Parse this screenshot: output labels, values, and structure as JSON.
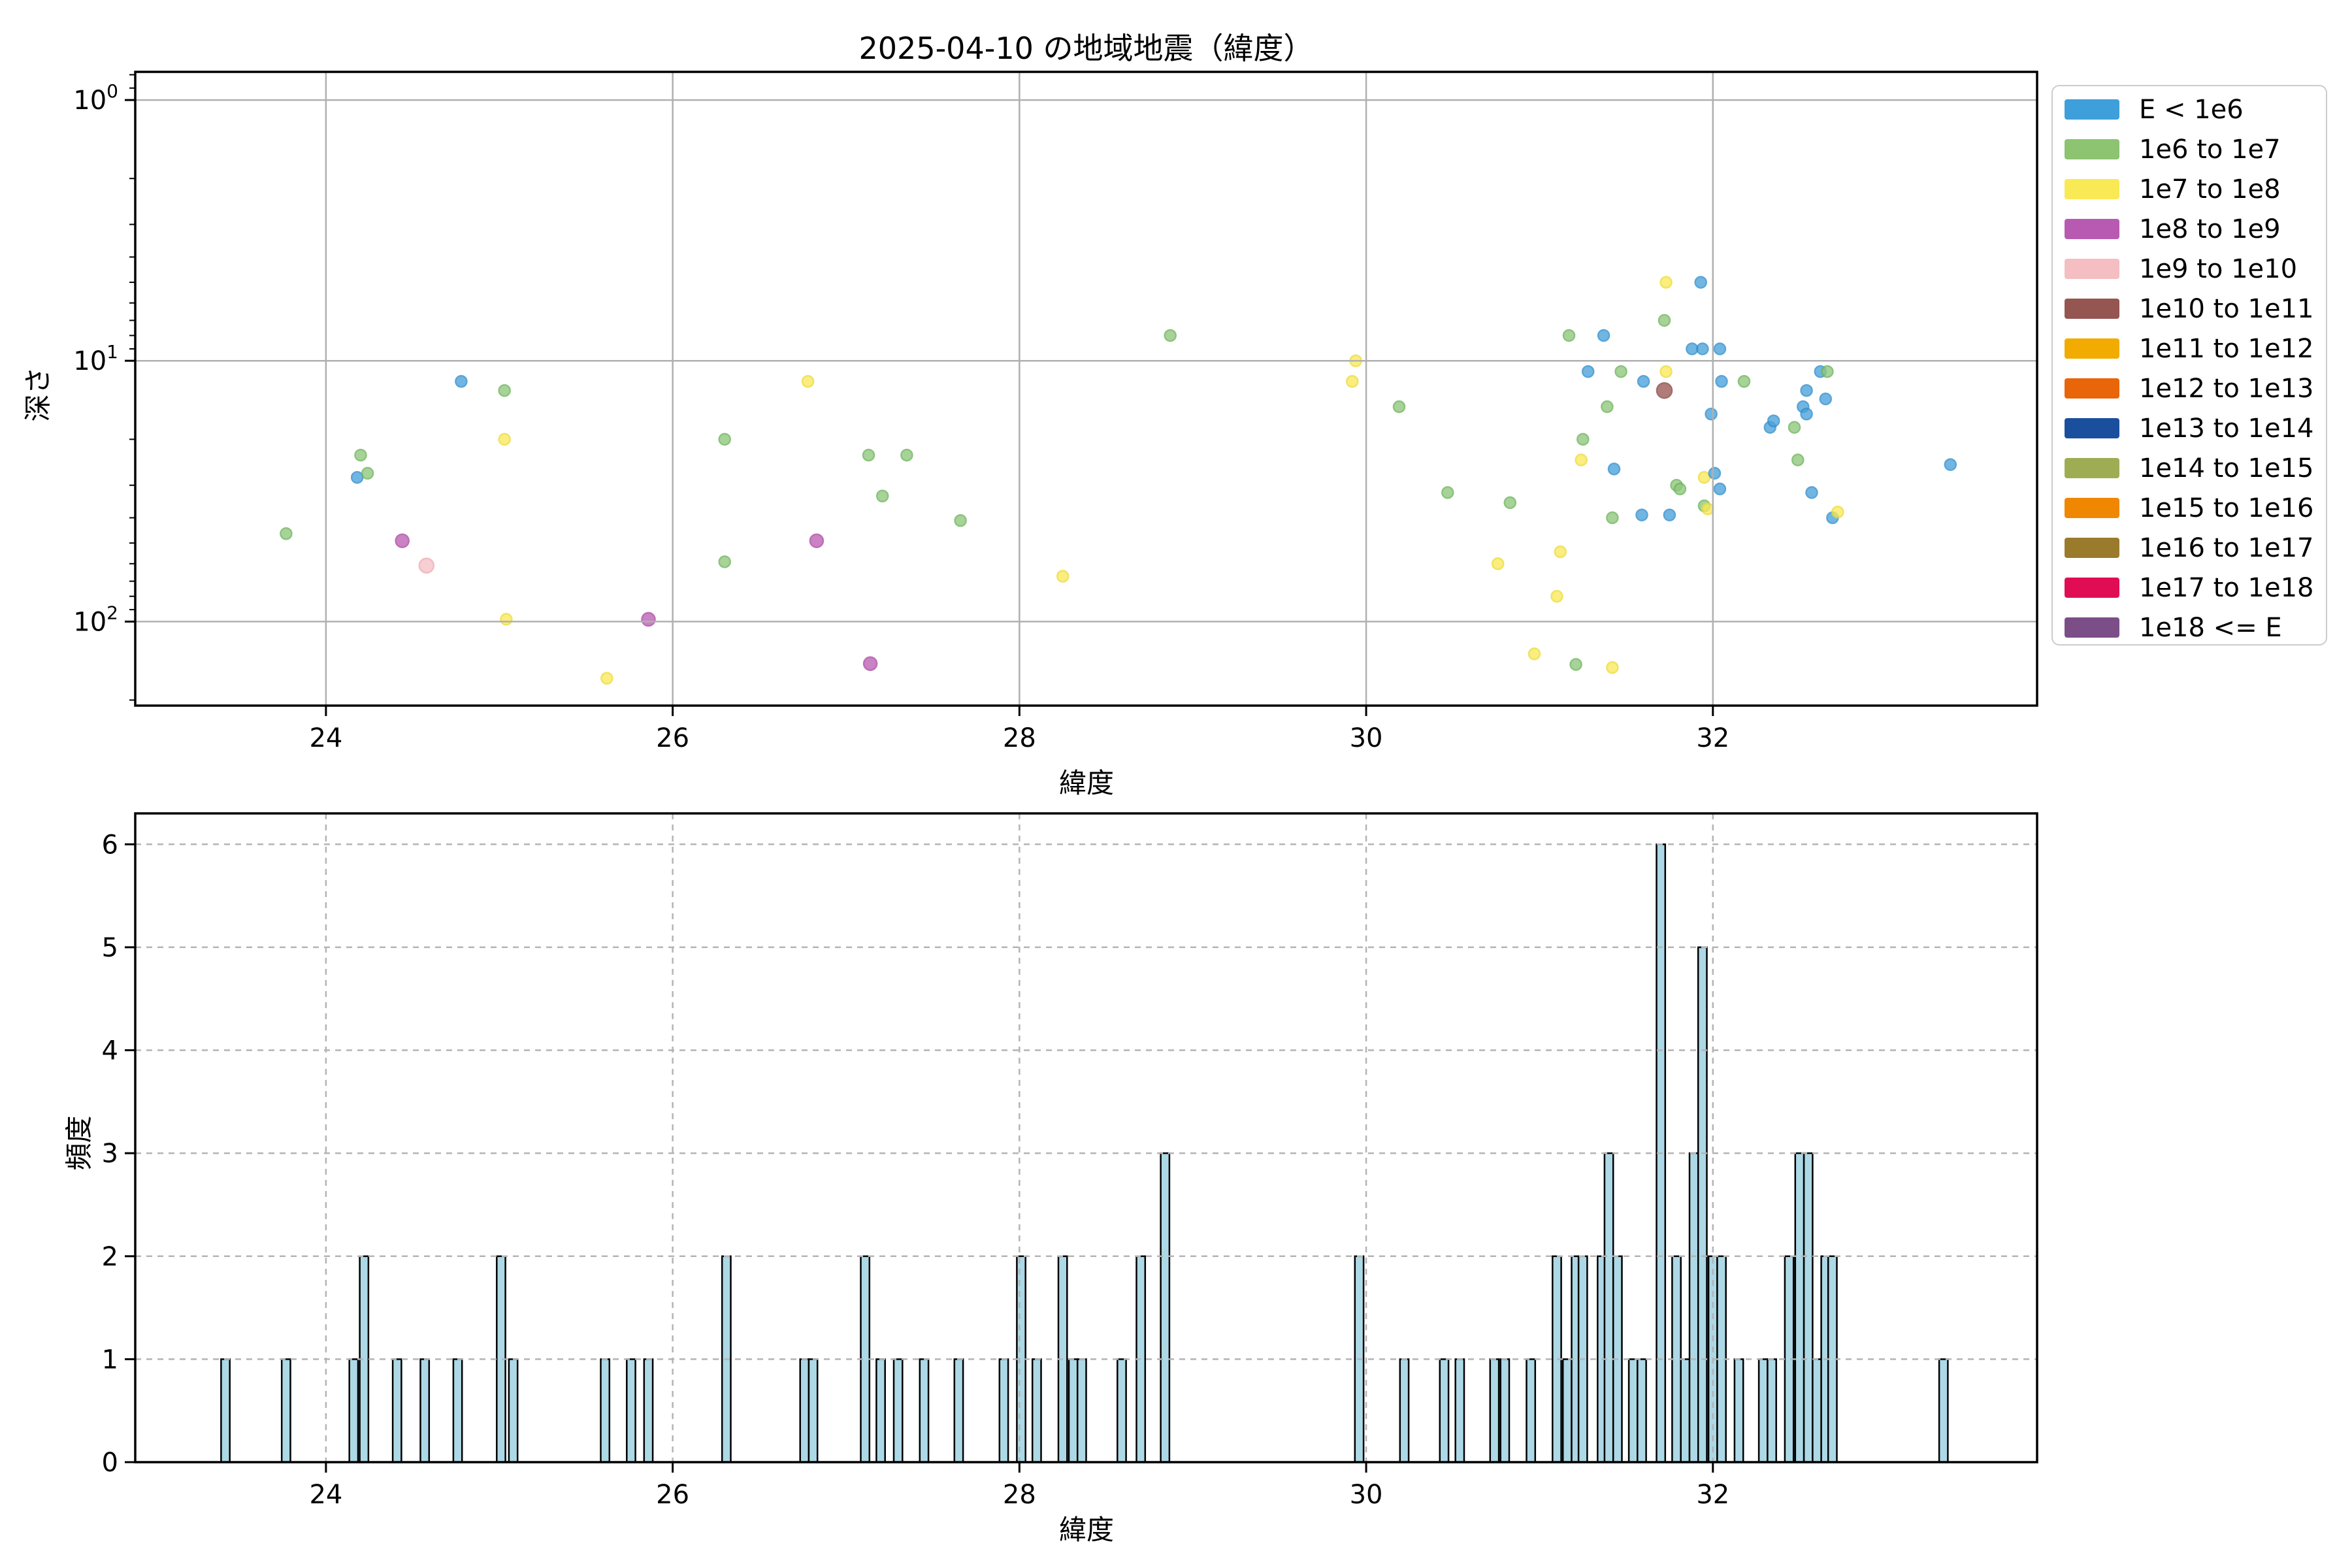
{
  "figure": {
    "title": "2025-04-10 の地域地震（緯度）"
  },
  "scatter_plot": {
    "xlabel": "緯度",
    "ylabel": "深さ",
    "x_tick_labels": [
      "24",
      "26",
      "28",
      "30",
      "32"
    ],
    "y_tick_mantissa": "10",
    "y_tick_exponents": [
      "0",
      "1",
      "2"
    ]
  },
  "histogram": {
    "xlabel": "緯度",
    "ylabel": "頻度",
    "x_tick_labels": [
      "24",
      "26",
      "28",
      "30",
      "32"
    ],
    "y_tick_labels": [
      "0",
      "1",
      "2",
      "3",
      "4",
      "5",
      "6"
    ]
  },
  "legend": {
    "items": [
      {
        "label": "E < 1e6",
        "color": "#3E9FDA"
      },
      {
        "label": "1e6 to 1e7",
        "color": "#8CC471"
      },
      {
        "label": "1e7 to 1e8",
        "color": "#F9E955"
      },
      {
        "label": "1e8 to 1e9",
        "color": "#B85AB2"
      },
      {
        "label": "1e9 to 1e10",
        "color": "#F4BEC2"
      },
      {
        "label": "1e10 to 1e11",
        "color": "#955551"
      },
      {
        "label": "1e11 to 1e12",
        "color": "#F2AB00"
      },
      {
        "label": "1e12 to 1e13",
        "color": "#E8650A"
      },
      {
        "label": "1e13 to 1e14",
        "color": "#1A4F9E"
      },
      {
        "label": "1e14 to 1e15",
        "color": "#9EAD53"
      },
      {
        "label": "1e15 to 1e16",
        "color": "#F08700"
      },
      {
        "label": "1e16 to 1e17",
        "color": "#9A7B2C"
      },
      {
        "label": "1e17 to 1e18",
        "color": "#E00D55"
      },
      {
        "label": "1e18 <= E",
        "color": "#7C4E88"
      }
    ]
  },
  "chart_data": [
    {
      "type": "scatter",
      "title": "2025-04-10 の地域地震（緯度）",
      "xlabel": "緯度",
      "ylabel": "深さ",
      "x_ticks": [
        24,
        26,
        28,
        30,
        32
      ],
      "y_ticks": [
        1,
        10,
        100
      ],
      "y_scale": "log-inverted-shallow-at-top",
      "xlim": [
        22.9,
        33.87
      ],
      "ylim": [
        0.78,
        210
      ],
      "grid": "solid",
      "legend_position": "outside-right",
      "bins": [
        {
          "label": "E < 1e6",
          "fill": "#4AA2DB",
          "edge": "#2E8CCC",
          "r": 8.5
        },
        {
          "label": "1e6 to 1e7",
          "fill": "#8FC77D",
          "edge": "#6DB35A",
          "r": 8.5
        },
        {
          "label": "1e7 to 1e8",
          "fill": "#FAE95A",
          "edge": "#EDDC35",
          "r": 8.5
        },
        {
          "label": "1e8 to 1e9",
          "fill": "#BC5FB5",
          "edge": "#A948A2",
          "r": 10
        },
        {
          "label": "1e9 to 1e10",
          "fill": "#F6C1C5",
          "edge": "#EFA8B0",
          "r": 11
        },
        {
          "label": "1e10 to 1e11",
          "fill": "#9B5854",
          "edge": "#8A4440",
          "r": 11.5
        }
      ],
      "points": [
        [
          23.77,
          46,
          1
        ],
        [
          24.18,
          28,
          0
        ],
        [
          24.2,
          23,
          1
        ],
        [
          24.24,
          27,
          1
        ],
        [
          24.44,
          49,
          3
        ],
        [
          24.58,
          61,
          4
        ],
        [
          24.78,
          12,
          0
        ],
        [
          25.03,
          13,
          1
        ],
        [
          25.03,
          20,
          2
        ],
        [
          25.04,
          98,
          2
        ],
        [
          25.62,
          165,
          2
        ],
        [
          25.86,
          98,
          3
        ],
        [
          26.3,
          20,
          1
        ],
        [
          26.3,
          59,
          1
        ],
        [
          26.78,
          12,
          2
        ],
        [
          26.83,
          49,
          3
        ],
        [
          27.13,
          23,
          1
        ],
        [
          27.14,
          145,
          3
        ],
        [
          27.21,
          33,
          1
        ],
        [
          27.35,
          23,
          1
        ],
        [
          27.66,
          41,
          1
        ],
        [
          28.25,
          67,
          2
        ],
        [
          28.87,
          8,
          1
        ],
        [
          29.92,
          12,
          2
        ],
        [
          29.94,
          10,
          2
        ],
        [
          30.19,
          15,
          1
        ],
        [
          30.47,
          32,
          1
        ],
        [
          30.76,
          60,
          2
        ],
        [
          30.83,
          35,
          1
        ],
        [
          30.97,
          133,
          2
        ],
        [
          31.1,
          80,
          2
        ],
        [
          31.12,
          54,
          2
        ],
        [
          31.17,
          8,
          1
        ],
        [
          31.21,
          146,
          1
        ],
        [
          31.24,
          24,
          2
        ],
        [
          31.25,
          20,
          1
        ],
        [
          31.28,
          11,
          0
        ],
        [
          31.37,
          8,
          0
        ],
        [
          31.39,
          15,
          1
        ],
        [
          31.42,
          150,
          2
        ],
        [
          31.42,
          40,
          1
        ],
        [
          31.43,
          26,
          0
        ],
        [
          31.47,
          11,
          1
        ],
        [
          31.59,
          39,
          0
        ],
        [
          31.6,
          12,
          0
        ],
        [
          31.72,
          7,
          1
        ],
        [
          31.72,
          13,
          5
        ],
        [
          31.73,
          5,
          2
        ],
        [
          31.73,
          11,
          2
        ],
        [
          31.75,
          39,
          0
        ],
        [
          31.79,
          30,
          1
        ],
        [
          31.81,
          31,
          1
        ],
        [
          31.88,
          9,
          0
        ],
        [
          31.93,
          5,
          0
        ],
        [
          31.94,
          9,
          0
        ],
        [
          31.95,
          28,
          2
        ],
        [
          31.95,
          36,
          1
        ],
        [
          31.97,
          37,
          2
        ],
        [
          31.99,
          16,
          0
        ],
        [
          32.01,
          27,
          0
        ],
        [
          32.04,
          9,
          0
        ],
        [
          32.04,
          31,
          0
        ],
        [
          32.05,
          12,
          0
        ],
        [
          32.18,
          12,
          1
        ],
        [
          32.33,
          18,
          0
        ],
        [
          32.35,
          17,
          0
        ],
        [
          32.47,
          18,
          1
        ],
        [
          32.49,
          24,
          1
        ],
        [
          32.52,
          15,
          0
        ],
        [
          32.54,
          13,
          0
        ],
        [
          32.54,
          16,
          0
        ],
        [
          32.57,
          32,
          0
        ],
        [
          32.62,
          11,
          0
        ],
        [
          32.65,
          14,
          0
        ],
        [
          32.66,
          11,
          1
        ],
        [
          32.69,
          40,
          0
        ],
        [
          32.72,
          38,
          2
        ],
        [
          33.37,
          25,
          0
        ]
      ]
    },
    {
      "type": "histogram",
      "xlabel": "緯度",
      "ylabel": "頻度",
      "x_ticks": [
        24,
        26,
        28,
        30,
        32
      ],
      "y_ticks": [
        0,
        1,
        2,
        3,
        4,
        5,
        6
      ],
      "xlim": [
        22.9,
        33.87
      ],
      "ylim": [
        0,
        6.3
      ],
      "grid": "dashed",
      "bar_color": "#ADD8E6",
      "bin_width": 0.05,
      "bars": [
        [
          23.42,
          1
        ],
        [
          23.77,
          1
        ],
        [
          24.16,
          1
        ],
        [
          24.22,
          2
        ],
        [
          24.41,
          1
        ],
        [
          24.57,
          1
        ],
        [
          24.76,
          1
        ],
        [
          25.01,
          2
        ],
        [
          25.08,
          1
        ],
        [
          25.61,
          1
        ],
        [
          25.76,
          1
        ],
        [
          25.86,
          1
        ],
        [
          26.31,
          2
        ],
        [
          26.76,
          1
        ],
        [
          26.81,
          1
        ],
        [
          27.11,
          2
        ],
        [
          27.2,
          1
        ],
        [
          27.3,
          1
        ],
        [
          27.45,
          1
        ],
        [
          27.65,
          1
        ],
        [
          27.91,
          1
        ],
        [
          28.01,
          2
        ],
        [
          28.1,
          1
        ],
        [
          28.25,
          2
        ],
        [
          28.31,
          1
        ],
        [
          28.36,
          1
        ],
        [
          28.59,
          1
        ],
        [
          28.7,
          2
        ],
        [
          28.84,
          3
        ],
        [
          29.96,
          2
        ],
        [
          30.22,
          1
        ],
        [
          30.45,
          1
        ],
        [
          30.54,
          1
        ],
        [
          30.74,
          1
        ],
        [
          30.8,
          1
        ],
        [
          30.95,
          1
        ],
        [
          31.1,
          2
        ],
        [
          31.16,
          1
        ],
        [
          31.21,
          2
        ],
        [
          31.25,
          2
        ],
        [
          31.36,
          2
        ],
        [
          31.4,
          3
        ],
        [
          31.45,
          2
        ],
        [
          31.54,
          1
        ],
        [
          31.59,
          1
        ],
        [
          31.7,
          6
        ],
        [
          31.79,
          2
        ],
        [
          31.84,
          1
        ],
        [
          31.89,
          3
        ],
        [
          31.94,
          5
        ],
        [
          32.0,
          2
        ],
        [
          32.05,
          2
        ],
        [
          32.15,
          1
        ],
        [
          32.29,
          1
        ],
        [
          32.34,
          1
        ],
        [
          32.44,
          2
        ],
        [
          32.5,
          3
        ],
        [
          32.55,
          3
        ],
        [
          32.6,
          1
        ],
        [
          32.65,
          2
        ],
        [
          32.69,
          2
        ],
        [
          33.33,
          1
        ]
      ]
    }
  ]
}
